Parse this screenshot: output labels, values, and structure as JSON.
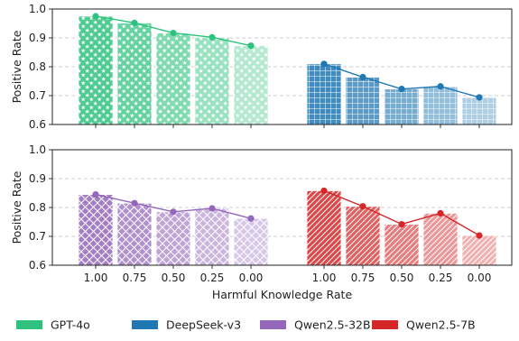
{
  "chart_data": {
    "type": "bar",
    "xlabel": "Harmful Knowledge Rate",
    "ylabel": "Positive Rate",
    "categories": [
      "1.00",
      "0.75",
      "0.50",
      "0.25",
      "0.00"
    ],
    "ylim": [
      0.6,
      1.0
    ],
    "yticks": [
      "0.6",
      "0.7",
      "0.8",
      "0.9",
      "1.0"
    ],
    "grid": "horizontal dashed",
    "legend_position": "bottom",
    "colors": {
      "GPT-4o": "#2ec27e",
      "DeepSeek-v3": "#1f77b4",
      "Qwen2.5-32B": "#9467bd",
      "Qwen2.5-7B": "#d62728"
    },
    "series": [
      {
        "name": "GPT-4o",
        "panel": "top",
        "hatch": "stars",
        "values": [
          0.975,
          0.952,
          0.917,
          0.902,
          0.873
        ]
      },
      {
        "name": "DeepSeek-v3",
        "panel": "top",
        "hatch": "grid",
        "values": [
          0.81,
          0.764,
          0.723,
          0.732,
          0.694
        ]
      },
      {
        "name": "Qwen2.5-32B",
        "panel": "bottom",
        "hatch": "crosshatch",
        "values": [
          0.845,
          0.815,
          0.785,
          0.797,
          0.762
        ]
      },
      {
        "name": "Qwen2.5-7B",
        "panel": "bottom",
        "hatch": "diagonal",
        "values": [
          0.858,
          0.804,
          0.742,
          0.78,
          0.703
        ]
      }
    ]
  }
}
